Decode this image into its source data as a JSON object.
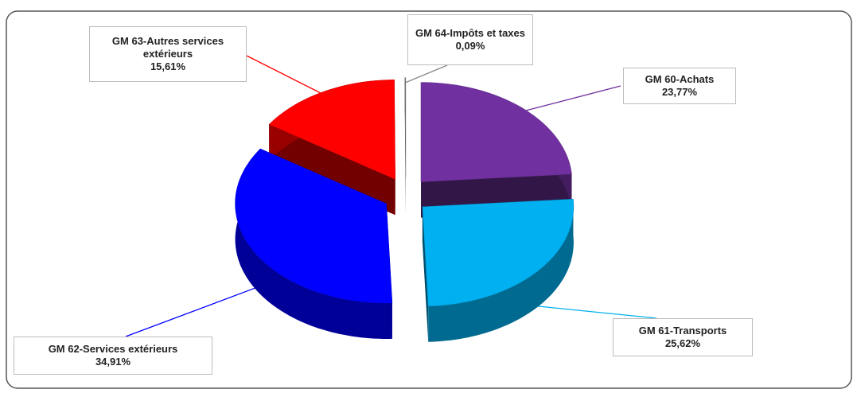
{
  "chart_data": {
    "type": "pie3d",
    "categories": [
      "GM 60-Achats",
      "GM 61-Transports",
      "GM 62-Services extérieurs",
      "GM 63-Autres services extérieurs",
      "GM 64-Impôts et taxes"
    ],
    "values": [
      23.77,
      25.62,
      34.91,
      15.61,
      0.09
    ],
    "value_labels": [
      "23,77%",
      "25,62%",
      "34,91%",
      "15,61%",
      "0,09%"
    ],
    "colors": [
      "#7030a0",
      "#00b0f0",
      "#0000ff",
      "#ff0000",
      "#808080"
    ]
  }
}
